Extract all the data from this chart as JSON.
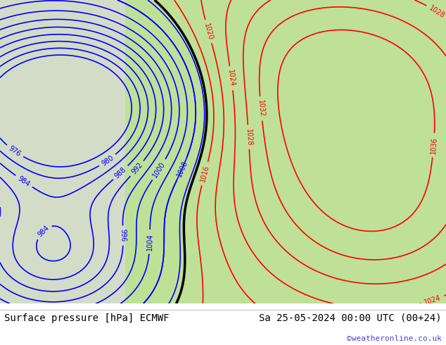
{
  "title_left": "Surface pressure [hPa] ECMWF",
  "title_right": "Sa 25-05-2024 00:00 UTC (00+24)",
  "credit": "©weatheronline.co.uk",
  "bg_color": "#e8f4e8",
  "land_color": "#c8e8a0",
  "sea_color": "#d0e8d0",
  "fig_width": 6.34,
  "fig_height": 4.9,
  "dpi": 100,
  "bottom_bar_color": "#f0f0f0",
  "bottom_text_color": "#000000",
  "credit_color": "#4444cc"
}
